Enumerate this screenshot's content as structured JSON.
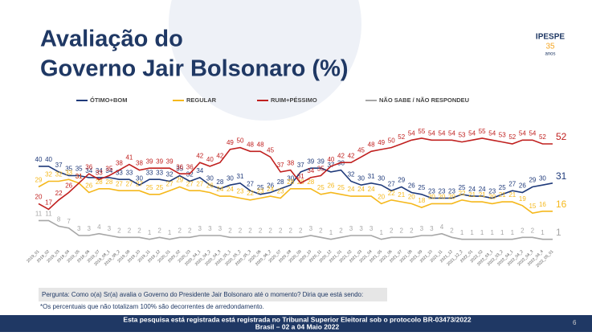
{
  "header": {
    "title_line1": "Avaliação do",
    "title_line2": "Governo Jair Bolsonaro (%)",
    "logo": "IPESPE",
    "logo_sub": "35",
    "logo_sub2": "anos"
  },
  "chart_data": {
    "type": "line",
    "categories": [
      "2019_01",
      "2019_02",
      "2019_03",
      "2019_04",
      "2019_05",
      "2019_06",
      "2019_07",
      "2019_08_1",
      "2019_08_2",
      "2019_09",
      "2019_10",
      "2019_11",
      "2019_12",
      "2020_01",
      "2020_02",
      "2020_03",
      "2020_04_1",
      "2020_04_2",
      "2020_04_3",
      "2020_05_1",
      "2020_05_2",
      "2020_05_3",
      "2020_06",
      "2020_06_2",
      "2020_07",
      "2020_08",
      "2020_09",
      "2020_10",
      "2020_11",
      "2020_12",
      "2021_01",
      "2021_02",
      "2021_03",
      "2021_04",
      "2021_05",
      "2021_06",
      "2021_07",
      "2021_08",
      "2021_09",
      "2021_10",
      "2021_11",
      "2021_12",
      "2021_12_2",
      "2022_01",
      "2022_02",
      "2022_03_1",
      "2022_03_2",
      "2022_04_1",
      "2022_04_2",
      "2022_04_3",
      "2022_04_4",
      "2022_05_01"
    ],
    "ylim": [
      0,
      58
    ],
    "series": [
      {
        "name": "ÓTIMO+BOM",
        "color": "#1f3a7a",
        "values": [
          40,
          40,
          37,
          35,
          35,
          34,
          34,
          34,
          33,
          33,
          30,
          33,
          33,
          32,
          35,
          32,
          34,
          30,
          28,
          30,
          31,
          27,
          25,
          26,
          28,
          30,
          37,
          39,
          39,
          37,
          38,
          32,
          30,
          31,
          30,
          27,
          29,
          26,
          25,
          23,
          23,
          23,
          25,
          24,
          24,
          23,
          25,
          27,
          26,
          29,
          30,
          31
        ]
      },
      {
        "name": "REGULAR",
        "color": "#f5b81c",
        "values": [
          29,
          32,
          32,
          33,
          31,
          26,
          28,
          28,
          27,
          27,
          27,
          25,
          25,
          27,
          29,
          27,
          27,
          26,
          24,
          24,
          23,
          22,
          23,
          24,
          23,
          28,
          28,
          28,
          25,
          26,
          25,
          24,
          24,
          24,
          20,
          22,
          21,
          20,
          18,
          20,
          20,
          20,
          22,
          21,
          21,
          20,
          21,
          21,
          19,
          15,
          16,
          16
        ]
      },
      {
        "name": "RUIM+PÉSSIMO",
        "color": "#c0201f",
        "values": [
          20,
          17,
          22,
          26,
          31,
          36,
          33,
          35,
          38,
          41,
          38,
          39,
          39,
          39,
          36,
          36,
          42,
          40,
          42,
          49,
          50,
          48,
          48,
          45,
          37,
          38,
          31,
          34,
          35,
          40,
          42,
          42,
          45,
          48,
          49,
          50,
          52,
          54,
          55,
          54,
          54,
          54,
          53,
          54,
          55,
          54,
          53,
          52,
          54,
          54,
          52,
          52
        ]
      },
      {
        "name": "NÃO SABE / NÃO RESPONDEU",
        "color": "#a6a6a6",
        "values": [
          11,
          11,
          8,
          7,
          3,
          3,
          4,
          3,
          2,
          2,
          2,
          1,
          2,
          1,
          2,
          2,
          3,
          3,
          3,
          2,
          2,
          2,
          2,
          2,
          2,
          2,
          2,
          3,
          2,
          1,
          2,
          3,
          3,
          3,
          1,
          2,
          2,
          2,
          3,
          3,
          4,
          2,
          1,
          1,
          1,
          1,
          1,
          1,
          2,
          2,
          1,
          1
        ]
      }
    ]
  },
  "footer": {
    "question": "Pergunta: Como o(a) Sr(a) avalia o Governo do Presidente Jair Bolsonaro até o momento? Diria que está sendo:",
    "note": "*Os percentuais que não totalizam 100% são decorrentes de arredondamento.",
    "registry": "Esta pesquisa está registrada está registrada no Tribunal Superior Eleitoral sob o protocolo BR-03473/2022",
    "dates": "Brasil – 02 a 04 Maio 2022",
    "page": "6"
  }
}
